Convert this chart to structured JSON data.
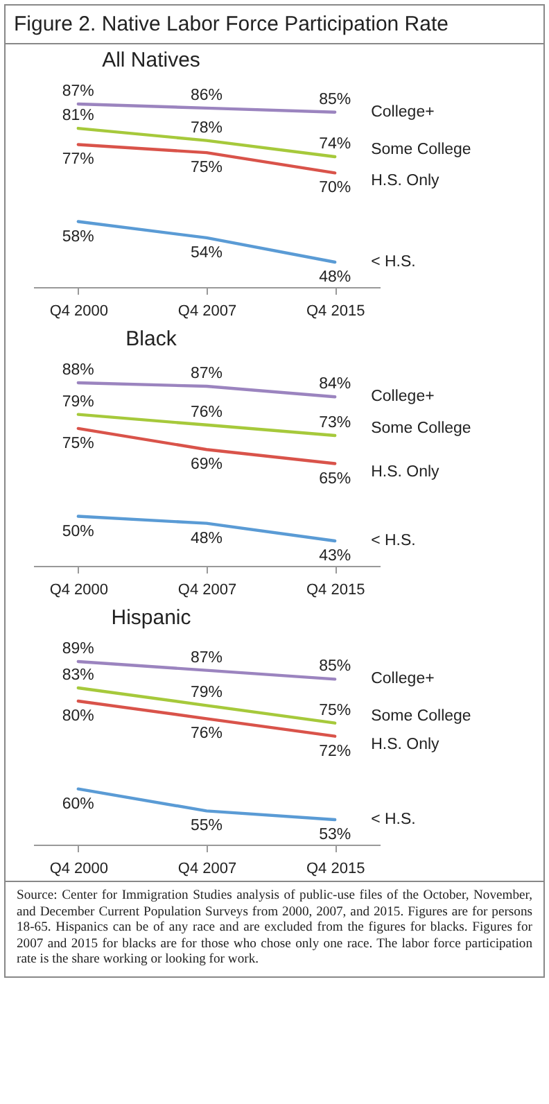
{
  "chart_data": [
    {
      "type": "line",
      "title": "Figure 2. Native Labor Force Participation Rate",
      "subtitle": "All Natives",
      "categories": [
        "Q4 2000",
        "Q4 2007",
        "Q4 2015"
      ],
      "series": [
        {
          "name": "College+",
          "color": "#9b84bf",
          "values": [
            87,
            86,
            85
          ],
          "value_labels": [
            "87%",
            "86%",
            "85%"
          ]
        },
        {
          "name": "Some College",
          "color": "#a6c93b",
          "values": [
            81,
            78,
            74
          ],
          "value_labels": [
            "81%",
            "78%",
            "74%"
          ]
        },
        {
          "name": "H.S. Only",
          "color": "#d9534a",
          "values": [
            77,
            75,
            70
          ],
          "value_labels": [
            "77%",
            "75%",
            "70%"
          ]
        },
        {
          "name": "< H.S.",
          "color": "#5a9bd5",
          "values": [
            58,
            54,
            48
          ],
          "value_labels": [
            "58%",
            "54%",
            "48%"
          ]
        }
      ]
    },
    {
      "type": "line",
      "subtitle": "Black",
      "categories": [
        "Q4 2000",
        "Q4 2007",
        "Q4 2015"
      ],
      "series": [
        {
          "name": "College+",
          "color": "#9b84bf",
          "values": [
            88,
            87,
            84
          ],
          "value_labels": [
            "88%",
            "87%",
            "84%"
          ]
        },
        {
          "name": "Some College",
          "color": "#a6c93b",
          "values": [
            79,
            76,
            73
          ],
          "value_labels": [
            "79%",
            "76%",
            "73%"
          ]
        },
        {
          "name": "H.S. Only",
          "color": "#d9534a",
          "values": [
            75,
            69,
            65
          ],
          "value_labels": [
            "75%",
            "69%",
            "65%"
          ]
        },
        {
          "name": "< H.S.",
          "color": "#5a9bd5",
          "values": [
            50,
            48,
            43
          ],
          "value_labels": [
            "50%",
            "48%",
            "43%"
          ]
        }
      ]
    },
    {
      "type": "line",
      "subtitle": "Hispanic",
      "categories": [
        "Q4 2000",
        "Q4 2007",
        "Q4 2015"
      ],
      "series": [
        {
          "name": "College+",
          "color": "#9b84bf",
          "values": [
            89,
            87,
            85
          ],
          "value_labels": [
            "89%",
            "87%",
            "85%"
          ]
        },
        {
          "name": "Some College",
          "color": "#a6c93b",
          "values": [
            83,
            79,
            75
          ],
          "value_labels": [
            "83%",
            "79%",
            "75%"
          ]
        },
        {
          "name": "H.S. Only",
          "color": "#d9534a",
          "values": [
            80,
            76,
            72
          ],
          "value_labels": [
            "80%",
            "76%",
            "72%"
          ]
        },
        {
          "name": "< H.S.",
          "color": "#5a9bd5",
          "values": [
            60,
            55,
            53
          ],
          "value_labels": [
            "60%",
            "55%",
            "53%"
          ]
        }
      ],
      "annotations": [
        "Source: Center for Immigration Studies analysis of public-use files of the October, November, and December Current Population Surveys from 2000, 2007, and 2015. Figures are for persons 18-65. Hispanics can be of any race and are excluded from the figures for blacks. Figures for 2007 and 2015 for blacks are for those who chose only one race. The labor force participation rate is the share working or looking for work."
      ]
    }
  ]
}
